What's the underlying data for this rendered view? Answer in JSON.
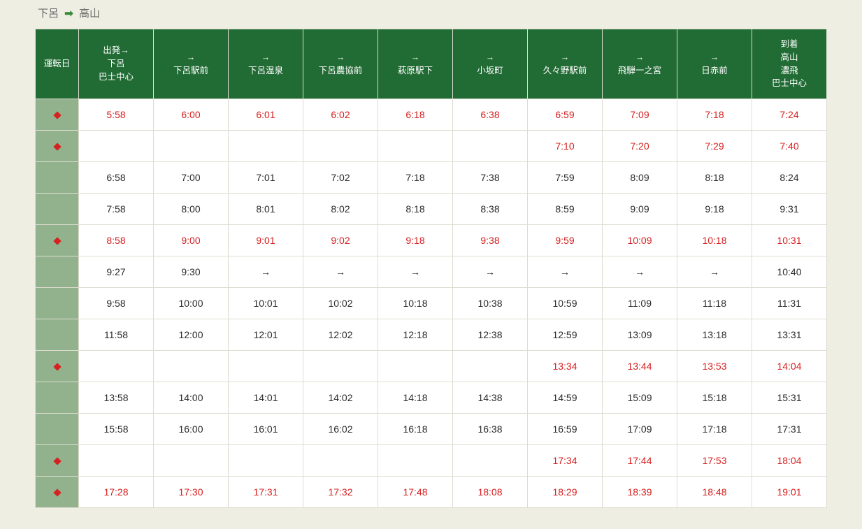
{
  "route": {
    "from": "下呂",
    "to": "高山"
  },
  "table": {
    "columns": [
      "運転日",
      "出発→\n下呂\n巴士中心",
      "→\n下呂駅前",
      "→\n下呂温泉",
      "→\n下呂農協前",
      "→\n萩原駅下",
      "→\n小坂町",
      "→\n久々野駅前",
      "→\n飛騨一之宮",
      "→\n日赤前",
      "到着\n高山\n濃飛\n巴士中心"
    ],
    "rows": [
      {
        "style": "red",
        "diamond": true,
        "cells": [
          "5:58",
          "6:00",
          "6:01",
          "6:02",
          "6:18",
          "6:38",
          "6:59",
          "7:09",
          "7:18",
          "7:24"
        ]
      },
      {
        "style": "red",
        "diamond": true,
        "cells": [
          "",
          "",
          "",
          "",
          "",
          "",
          "7:10",
          "7:20",
          "7:29",
          "7:40"
        ]
      },
      {
        "style": "black",
        "diamond": false,
        "cells": [
          "6:58",
          "7:00",
          "7:01",
          "7:02",
          "7:18",
          "7:38",
          "7:59",
          "8:09",
          "8:18",
          "8:24"
        ]
      },
      {
        "style": "black",
        "diamond": false,
        "cells": [
          "7:58",
          "8:00",
          "8:01",
          "8:02",
          "8:18",
          "8:38",
          "8:59",
          "9:09",
          "9:18",
          "9:31"
        ]
      },
      {
        "style": "red",
        "diamond": true,
        "cells": [
          "8:58",
          "9:00",
          "9:01",
          "9:02",
          "9:18",
          "9:38",
          "9:59",
          "10:09",
          "10:18",
          "10:31"
        ]
      },
      {
        "style": "black",
        "diamond": false,
        "cells": [
          "9:27",
          "9:30",
          "→",
          "→",
          "→",
          "→",
          "→",
          "→",
          "→",
          "10:40"
        ]
      },
      {
        "style": "black",
        "diamond": false,
        "cells": [
          "9:58",
          "10:00",
          "10:01",
          "10:02",
          "10:18",
          "10:38",
          "10:59",
          "11:09",
          "11:18",
          "11:31"
        ]
      },
      {
        "style": "black",
        "diamond": false,
        "cells": [
          "11:58",
          "12:00",
          "12:01",
          "12:02",
          "12:18",
          "12:38",
          "12:59",
          "13:09",
          "13:18",
          "13:31"
        ]
      },
      {
        "style": "red",
        "diamond": true,
        "cells": [
          "",
          "",
          "",
          "",
          "",
          "",
          "13:34",
          "13:44",
          "13:53",
          "14:04"
        ]
      },
      {
        "style": "black",
        "diamond": false,
        "cells": [
          "13:58",
          "14:00",
          "14:01",
          "14:02",
          "14:18",
          "14:38",
          "14:59",
          "15:09",
          "15:18",
          "15:31"
        ]
      },
      {
        "style": "black",
        "diamond": false,
        "cells": [
          "15:58",
          "16:00",
          "16:01",
          "16:02",
          "16:18",
          "16:38",
          "16:59",
          "17:09",
          "17:18",
          "17:31"
        ]
      },
      {
        "style": "red",
        "diamond": true,
        "cells": [
          "",
          "",
          "",
          "",
          "",
          "",
          "17:34",
          "17:44",
          "17:53",
          "18:04"
        ]
      },
      {
        "style": "red",
        "diamond": true,
        "cells": [
          "17:28",
          "17:30",
          "17:31",
          "17:32",
          "17:48",
          "18:08",
          "18:29",
          "18:39",
          "18:48",
          "19:01"
        ]
      }
    ]
  },
  "styling": {
    "page_bg": "#efeee2",
    "header_bg": "#216b34",
    "header_fg": "#ffffff",
    "op_cell_bg": "#92b28d",
    "border_color": "#dedcd0",
    "red_text": "#d72020",
    "black_text": "#2b2b2b",
    "title_color": "#6a6a6a",
    "arrow_color": "#3a8a3a"
  }
}
